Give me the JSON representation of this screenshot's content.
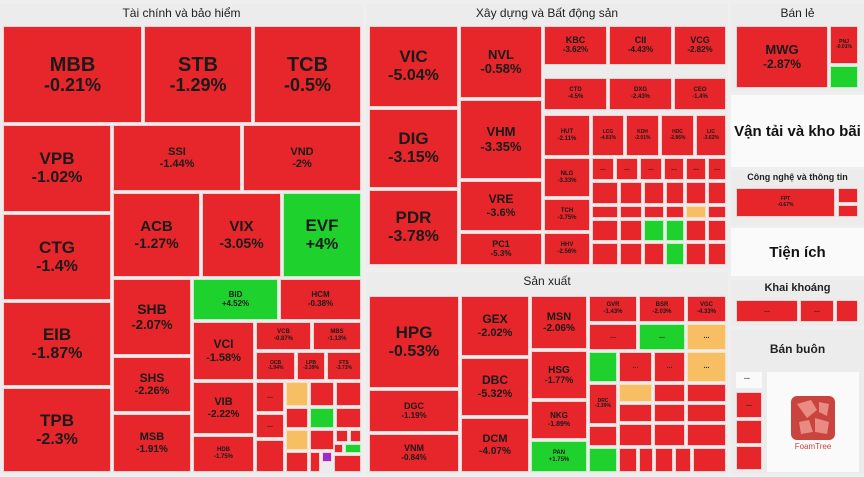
{
  "chart_data": {
    "type": "treemap",
    "sectors": [
      {
        "name": "Tài chính và bảo hiểm",
        "items": [
          {
            "ticker": "MBB",
            "change": "-0.21%"
          },
          {
            "ticker": "STB",
            "change": "-1.29%"
          },
          {
            "ticker": "TCB",
            "change": "-0.5%"
          },
          {
            "ticker": "VPB",
            "change": "-1.02%"
          },
          {
            "ticker": "SSI",
            "change": "-1.44%"
          },
          {
            "ticker": "VND",
            "change": "-2%"
          },
          {
            "ticker": "CTG",
            "change": "-1.4%"
          },
          {
            "ticker": "ACB",
            "change": "-1.27%"
          },
          {
            "ticker": "VIX",
            "change": "-3.05%"
          },
          {
            "ticker": "EVF",
            "change": "+4%"
          },
          {
            "ticker": "EIB",
            "change": "-1.87%"
          },
          {
            "ticker": "SHB",
            "change": "-2.07%"
          },
          {
            "ticker": "BID",
            "change": "+4.52%"
          },
          {
            "ticker": "HCM",
            "change": "-0.38%"
          },
          {
            "ticker": "VCI",
            "change": "-1.58%"
          },
          {
            "ticker": "VCB",
            "change": "-0.87%"
          },
          {
            "ticker": "MBS",
            "change": "-1.13%"
          },
          {
            "ticker": "OCB",
            "change": "-1.94%"
          },
          {
            "ticker": "LPB",
            "change": "-3.39%"
          },
          {
            "ticker": "FTS",
            "change": "-3.73%"
          },
          {
            "ticker": "TPB",
            "change": "-2.3%"
          },
          {
            "ticker": "SHS",
            "change": "-2.26%"
          },
          {
            "ticker": "VIB",
            "change": "-2.22%"
          },
          {
            "ticker": "MSB",
            "change": "-1.91%"
          },
          {
            "ticker": "HDB",
            "change": "-1.75%"
          }
        ]
      },
      {
        "name": "Xây dựng và Bất động sản",
        "items": [
          {
            "ticker": "VIC",
            "change": "-5.04%"
          },
          {
            "ticker": "NVL",
            "change": "-0.58%"
          },
          {
            "ticker": "KBC",
            "change": "-3.62%"
          },
          {
            "ticker": "CII",
            "change": "-4.43%"
          },
          {
            "ticker": "VCG",
            "change": "-2.82%"
          },
          {
            "ticker": "CTD",
            "change": "-4.5%"
          },
          {
            "ticker": "DXG",
            "change": "-2.43%"
          },
          {
            "ticker": "CEO",
            "change": "-1.4%"
          },
          {
            "ticker": "DIG",
            "change": "-3.15%"
          },
          {
            "ticker": "VHM",
            "change": "-3.35%"
          },
          {
            "ticker": "HUT",
            "change": "-2.11%"
          },
          {
            "ticker": "LCG",
            "change": "-4.81%"
          },
          {
            "ticker": "KDH",
            "change": "-2.01%"
          },
          {
            "ticker": "HDC",
            "change": "-2.86%"
          },
          {
            "ticker": "LIC",
            "change": "-3.62%"
          },
          {
            "ticker": "NLG",
            "change": "-3.33%"
          },
          {
            "ticker": "VRE",
            "change": "-3.6%"
          },
          {
            "ticker": "TCH",
            "change": "-3.75%"
          },
          {
            "ticker": "PDR",
            "change": "-3.78%"
          },
          {
            "ticker": "PC1",
            "change": "-5.3%"
          },
          {
            "ticker": "HHV",
            "change": "-2.56%"
          }
        ]
      },
      {
        "name": "Sản xuất",
        "items": [
          {
            "ticker": "HPG",
            "change": "-0.53%"
          },
          {
            "ticker": "GEX",
            "change": "-2.02%"
          },
          {
            "ticker": "MSN",
            "change": "-2.06%"
          },
          {
            "ticker": "GVR",
            "change": "-1.43%"
          },
          {
            "ticker": "BSR",
            "change": "-2.03%"
          },
          {
            "ticker": "VGC",
            "change": "-4.33%"
          },
          {
            "ticker": "DBC",
            "change": "-5.32%"
          },
          {
            "ticker": "HSG",
            "change": "-1.77%"
          },
          {
            "ticker": "DGC",
            "change": "-1.19%"
          },
          {
            "ticker": "NKG",
            "change": "-1.89%"
          },
          {
            "ticker": "DRC",
            "change": "-1.39%"
          },
          {
            "ticker": "VNM",
            "change": "-0.84%"
          },
          {
            "ticker": "DCM",
            "change": "-4.07%"
          },
          {
            "ticker": "PAN",
            "change": "+1.75%"
          }
        ]
      },
      {
        "name": "Bán lẻ",
        "items": [
          {
            "ticker": "MWG",
            "change": "-2.87%"
          },
          {
            "ticker": "PNJ",
            "change": "-0.01%"
          }
        ]
      },
      {
        "name": "Vận tải và kho bãi",
        "items": []
      },
      {
        "name": "Công nghệ và thông tin",
        "items": [
          {
            "ticker": "FPT",
            "change": "-0.67%"
          }
        ]
      },
      {
        "name": "Tiện ích",
        "items": []
      },
      {
        "name": "Khai khoáng",
        "items": []
      },
      {
        "name": "Bán buôn",
        "items": []
      }
    ],
    "more_label": "...",
    "colors": {
      "down": "#e6262a",
      "up": "#1fd12c",
      "flat": "#f7be63"
    }
  },
  "brand": {
    "name": "FoamTree"
  }
}
